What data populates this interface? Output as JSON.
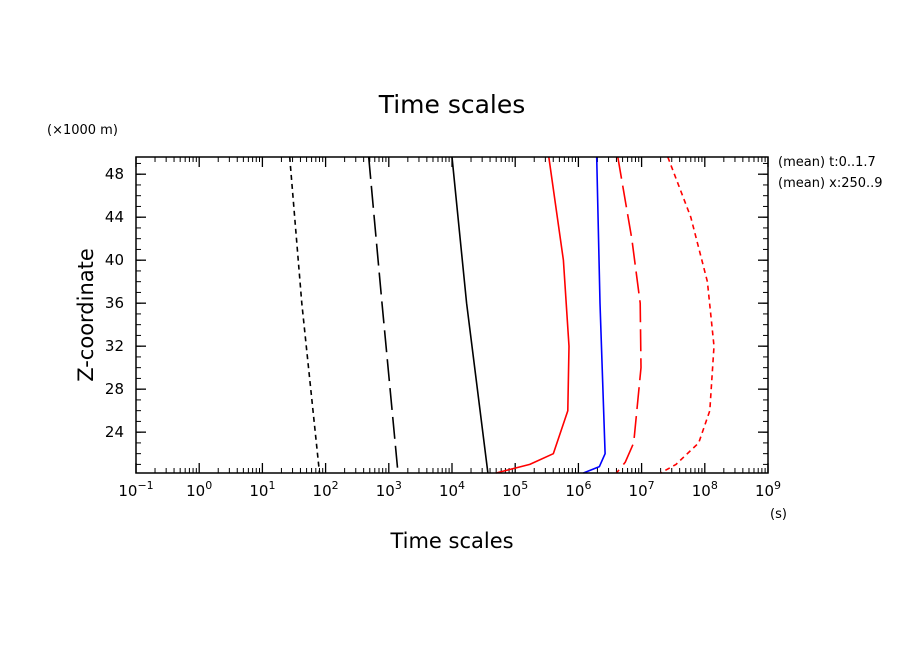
{
  "chart_data": {
    "type": "line",
    "title": "Time scales",
    "xlabel": "Time scales",
    "ylabel": "Z-coordinate",
    "x_unit": "(s)",
    "y_unit": "(×1000 m)",
    "x_scale": "log",
    "xlim": [
      0.1,
      1000000000
    ],
    "ylim": [
      20.2,
      49.6
    ],
    "x_ticks": [
      {
        "base": "10",
        "exp": "−1"
      },
      {
        "base": "10",
        "exp": "0"
      },
      {
        "base": "10",
        "exp": "1"
      },
      {
        "base": "10",
        "exp": "2"
      },
      {
        "base": "10",
        "exp": "3"
      },
      {
        "base": "10",
        "exp": "4"
      },
      {
        "base": "10",
        "exp": "5"
      },
      {
        "base": "10",
        "exp": "6"
      },
      {
        "base": "10",
        "exp": "7"
      },
      {
        "base": "10",
        "exp": "8"
      },
      {
        "base": "10",
        "exp": "9"
      }
    ],
    "x_tick_values": [
      0.1,
      1,
      10,
      100,
      1000,
      10000,
      100000,
      1000000,
      10000000,
      100000000,
      1000000000
    ],
    "y_ticks": [
      "24",
      "28",
      "32",
      "36",
      "40",
      "44",
      "48"
    ],
    "y_tick_values": [
      24,
      28,
      32,
      36,
      40,
      44,
      48
    ],
    "grid": false,
    "annotations": [
      "(mean) t:0..1.7",
      "(mean) x:250..9"
    ],
    "series": [
      {
        "color": "#000000",
        "dash": "short",
        "points": [
          [
            27,
            49.6
          ],
          [
            42,
            36
          ],
          [
            80,
            20.2
          ]
        ]
      },
      {
        "color": "#000000",
        "dash": "long",
        "points": [
          [
            480,
            49.6
          ],
          [
            780,
            36
          ],
          [
            1400,
            20.2
          ]
        ]
      },
      {
        "color": "#000000",
        "dash": "solid",
        "points": [
          [
            10000,
            49.6
          ],
          [
            17000,
            36
          ],
          [
            37000,
            20.2
          ]
        ]
      },
      {
        "color": "#ff0000",
        "dash": "solid",
        "points": [
          [
            340000,
            49.6
          ],
          [
            580000,
            40
          ],
          [
            710000,
            32
          ],
          [
            680000,
            26
          ],
          [
            400000,
            22
          ],
          [
            170000,
            21
          ],
          [
            50000,
            20.2
          ]
        ]
      },
      {
        "color": "#0000ff",
        "dash": "solid",
        "points": [
          [
            1950000,
            49.6
          ],
          [
            2200000,
            36
          ],
          [
            2650000,
            22
          ],
          [
            2150000,
            20.8
          ],
          [
            1200000,
            20.2
          ]
        ]
      },
      {
        "color": "#ff0000",
        "dash": "long",
        "points": [
          [
            4200000,
            49.6
          ],
          [
            7000000,
            42
          ],
          [
            9500000,
            36
          ],
          [
            9800000,
            30
          ],
          [
            7500000,
            23
          ],
          [
            5500000,
            21.2
          ],
          [
            4000000,
            20.2
          ]
        ]
      },
      {
        "color": "#ff0000",
        "dash": "short",
        "points": [
          [
            26000000,
            49.6
          ],
          [
            60000000,
            44
          ],
          [
            110000000,
            38
          ],
          [
            140000000,
            32
          ],
          [
            120000000,
            26
          ],
          [
            80000000,
            23
          ],
          [
            35000000,
            21
          ],
          [
            20000000,
            20.2
          ]
        ]
      }
    ]
  }
}
